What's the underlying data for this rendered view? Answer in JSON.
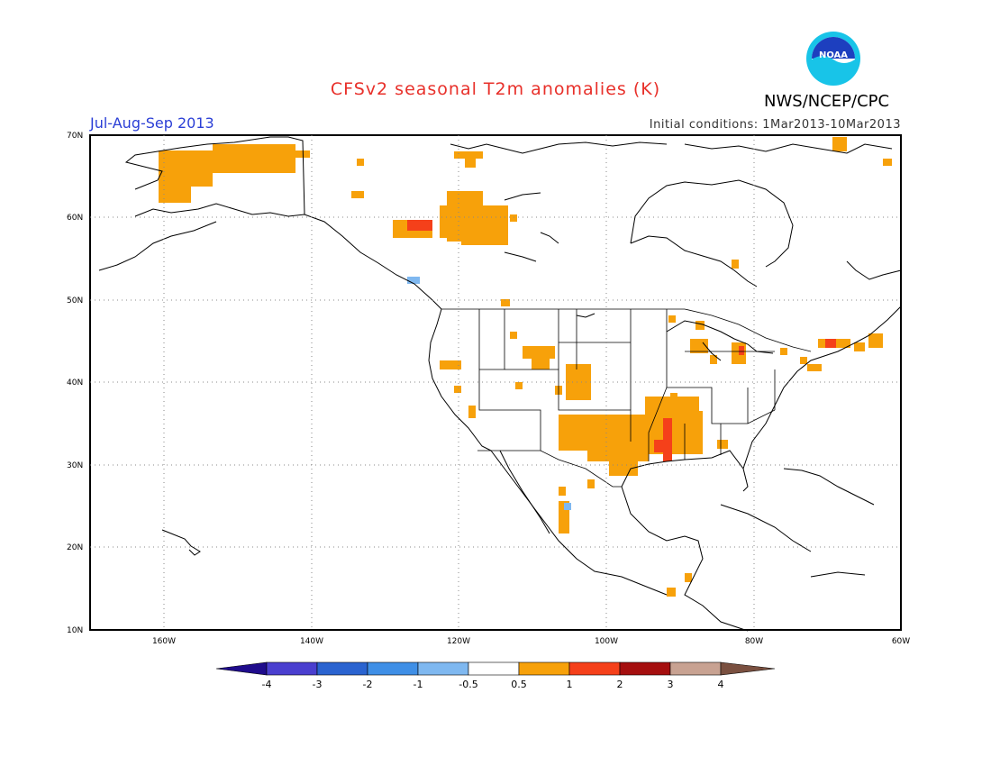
{
  "title": "CFSv2 seasonal T2m anomalies (K)",
  "period": "Jul-Aug-Sep 2013",
  "credit": "NWS/NCEP/CPC",
  "logo_text": "NOAA",
  "initial_conditions": "Initial conditions: 1Mar2013-10Mar2013",
  "map": {
    "lat_labels": [
      "70N",
      "60N",
      "50N",
      "40N",
      "30N",
      "20N",
      "10N"
    ],
    "lon_labels": [
      "160W",
      "140W",
      "120W",
      "100W",
      "80W",
      "60W"
    ],
    "lon_range": [
      -170,
      -60
    ],
    "lat_range": [
      10,
      70
    ],
    "gridlines": "dotted"
  },
  "colorbar": {
    "labels": [
      "-4",
      "-3",
      "-2",
      "-1",
      "-0.5",
      "0.5",
      "1",
      "2",
      "3",
      "4"
    ],
    "colors": [
      "#1f0c8c",
      "#4a3fcf",
      "#2a63d0",
      "#3f8fe6",
      "#7fb8f0",
      "#ffffff",
      "#f7a10a",
      "#f5401a",
      "#a50f0f",
      "#c8a292",
      "#7a5040"
    ]
  },
  "anomalies": [
    {
      "lon": -160,
      "lat": 66,
      "level": "0.5-1"
    },
    {
      "lon": -145,
      "lat": 67,
      "level": "0.5-1"
    },
    {
      "lon": -119,
      "lat": 59,
      "level": "0.5-1"
    },
    {
      "lon": -124,
      "lat": 59,
      "level": "1-2"
    },
    {
      "lon": -127,
      "lat": 52,
      "level": "-1--0.5"
    },
    {
      "lon": -107,
      "lat": 35,
      "level": "0.5-1"
    },
    {
      "lon": -98,
      "lat": 33,
      "level": "0.5-1"
    },
    {
      "lon": -91,
      "lat": 33,
      "level": "1-2"
    },
    {
      "lon": -105,
      "lat": 41,
      "level": "0.5-1"
    },
    {
      "lon": -82,
      "lat": 43,
      "level": "1-2"
    },
    {
      "lon": -105,
      "lat": 24,
      "level": "-1--0.5"
    }
  ]
}
